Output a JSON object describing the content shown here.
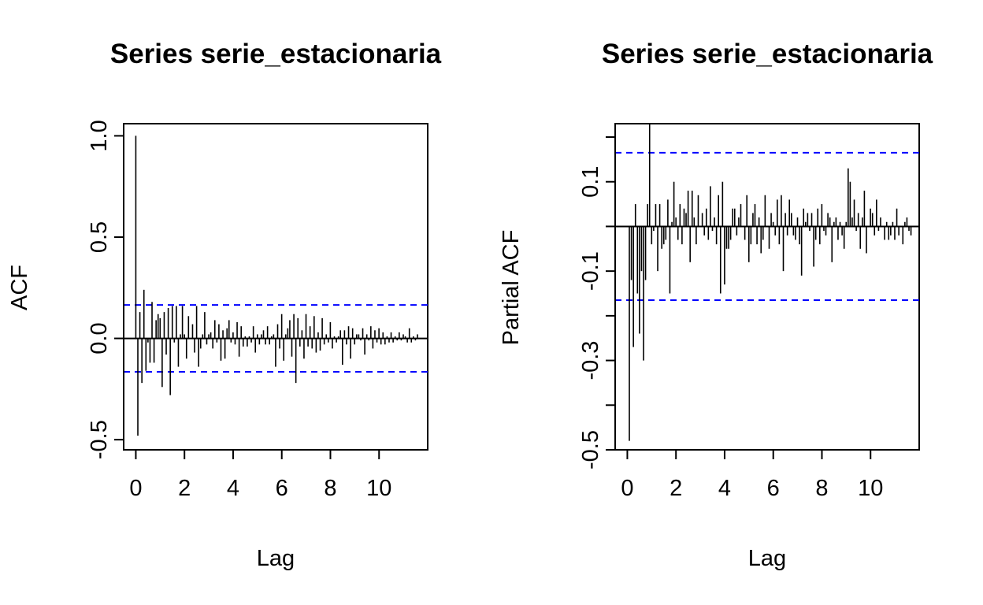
{
  "chart_data": [
    {
      "type": "bar",
      "variant": "acf-stem",
      "title": "Series  serie_estacionaria",
      "xlabel": "Lag",
      "ylabel": "ACF",
      "xlim": [
        -0.5,
        12
      ],
      "ylim": [
        -0.55,
        1.06
      ],
      "xticks": [
        0,
        2,
        4,
        6,
        8,
        10
      ],
      "yticks": [
        -0.5,
        0.0,
        0.5,
        1.0
      ],
      "ytick_labels": [
        "-0.5",
        "0.0",
        "0.5",
        "1.0"
      ],
      "confidence_band": 0.165,
      "lag_step": 0.0833,
      "series": [
        {
          "name": "",
          "x_start": 0,
          "values": [
            1.0,
            -0.48,
            0.13,
            -0.22,
            0.24,
            -0.16,
            -0.02,
            -0.12,
            0.18,
            -0.12,
            0.09,
            0.12,
            0.1,
            -0.24,
            0.13,
            -0.08,
            0.15,
            -0.28,
            0.16,
            -0.02,
            0.16,
            -0.14,
            0.02,
            0.16,
            0.02,
            -0.1,
            0.11,
            0.0,
            0.07,
            -0.07,
            0.16,
            -0.14,
            -0.05,
            0.02,
            0.13,
            -0.03,
            0.02,
            0.03,
            -0.05,
            0.09,
            -0.02,
            0.07,
            -0.11,
            0.04,
            -0.1,
            0.05,
            0.09,
            -0.02,
            0.03,
            -0.03,
            0.08,
            -0.09,
            0.06,
            -0.04,
            0.01,
            -0.04,
            0.01,
            -0.02,
            0.06,
            -0.07,
            0.02,
            -0.03,
            0.02,
            0.04,
            -0.03,
            0.06,
            -0.03,
            0.01,
            0.02,
            -0.14,
            0.07,
            -0.05,
            0.12,
            -0.11,
            0.02,
            0.05,
            0.09,
            -0.09,
            0.12,
            -0.22,
            0.1,
            -0.04,
            0.04,
            -0.1,
            0.12,
            -0.04,
            0.06,
            -0.05,
            0.11,
            -0.07,
            0.03,
            -0.06,
            0.1,
            -0.03,
            0.02,
            -0.02,
            0.08,
            -0.05,
            0.01,
            -0.02,
            0.01,
            0.04,
            -0.13,
            0.04,
            -0.03,
            0.06,
            -0.1,
            0.05,
            -0.03,
            0.02,
            0.02,
            -0.01,
            0.05,
            -0.08,
            0.02,
            -0.01,
            0.06,
            -0.05,
            0.04,
            -0.02,
            0.05,
            -0.03,
            0.03,
            -0.03,
            0.01,
            -0.02,
            0.03,
            -0.02,
            0.01,
            -0.01,
            0.03,
            -0.01,
            0.02,
            0.01,
            -0.02,
            0.05,
            -0.02,
            0.01,
            -0.01,
            0.02
          ]
        }
      ]
    },
    {
      "type": "bar",
      "variant": "pacf-stem",
      "title": "Series  serie_estacionaria",
      "xlabel": "Lag",
      "ylabel": "Partial ACF",
      "xlim": [
        -0.5,
        12
      ],
      "ylim": [
        -0.5,
        0.23
      ],
      "xticks": [
        0,
        2,
        4,
        6,
        8,
        10
      ],
      "yticks": [
        -0.5,
        -0.4,
        -0.3,
        -0.2,
        -0.1,
        0.0,
        0.1,
        0.2
      ],
      "ytick_labels": [
        "-0.5",
        "",
        "-0.3",
        "",
        "-0.1",
        "",
        "0.1",
        ""
      ],
      "confidence_band": 0.165,
      "lag_step": 0.0833,
      "series": [
        {
          "name": "",
          "x_start": 0.0833,
          "values": [
            -0.48,
            -0.12,
            -0.27,
            0.05,
            -0.15,
            -0.24,
            -0.1,
            -0.3,
            -0.12,
            0.05,
            0.23,
            -0.04,
            -0.01,
            0.05,
            -0.1,
            0.05,
            -0.05,
            -0.04,
            -0.03,
            0.06,
            -0.15,
            0.01,
            0.1,
            0.02,
            -0.03,
            0.05,
            -0.04,
            0.04,
            0.03,
            0.08,
            -0.08,
            0.08,
            0.02,
            -0.04,
            0.07,
            0.0,
            0.03,
            -0.02,
            0.04,
            -0.03,
            0.09,
            -0.01,
            0.02,
            -0.04,
            0.07,
            -0.15,
            0.1,
            -0.13,
            -0.05,
            -0.05,
            -0.03,
            0.04,
            0.04,
            -0.02,
            0.02,
            0.05,
            0.0,
            -0.03,
            0.07,
            -0.08,
            -0.04,
            0.03,
            0.05,
            -0.04,
            0.02,
            -0.06,
            -0.03,
            0.07,
            0.0,
            -0.05,
            0.03,
            0.01,
            -0.02,
            0.06,
            -0.04,
            0.07,
            -0.1,
            0.03,
            -0.02,
            0.06,
            0.03,
            -0.02,
            -0.03,
            0.02,
            -0.04,
            -0.11,
            0.04,
            0.01,
            0.03,
            -0.01,
            0.03,
            -0.09,
            -0.03,
            0.04,
            -0.04,
            0.05,
            -0.01,
            -0.02,
            0.03,
            0.02,
            -0.08,
            0.01,
            0.02,
            -0.03,
            0.01,
            -0.02,
            -0.05,
            0.01,
            0.13,
            0.1,
            0.02,
            0.06,
            -0.01,
            0.03,
            -0.05,
            0.02,
            0.08,
            -0.06,
            0.0,
            0.04,
            0.03,
            -0.02,
            0.06,
            -0.01,
            0.02,
            0.0,
            -0.03,
            0.01,
            -0.03,
            -0.02,
            0.01,
            -0.03,
            0.04,
            -0.02,
            0.0,
            -0.04,
            0.01,
            0.02,
            -0.01,
            -0.02
          ]
        }
      ]
    }
  ],
  "colors": {
    "stem": "#000000",
    "axis": "#000000",
    "confidence": "#0000ff",
    "background": "#ffffff"
  }
}
